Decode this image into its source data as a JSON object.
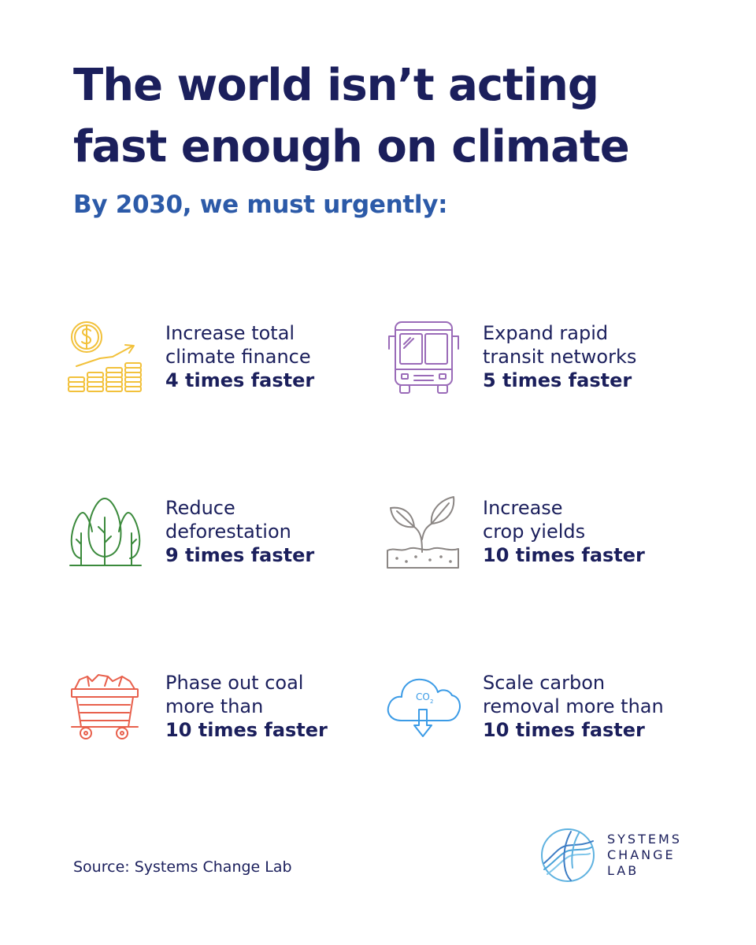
{
  "title": {
    "line1": "The world isn’t acting",
    "line2": "fast enough on climate"
  },
  "subtitle": "By 2030, we must urgently:",
  "colors": {
    "navy": "#1b1f5c",
    "subtitle_blue": "#2c5aa8",
    "finance_yellow": "#f2c13b",
    "transit_purple": "#9a6bb8",
    "forest_green": "#3b8a3c",
    "crop_gray": "#8b8684",
    "coal_red": "#e8604c",
    "carbon_blue": "#3b9be6"
  },
  "items": [
    {
      "icon": "coin-growth-icon",
      "line1": "Increase total",
      "line2": "climate finance",
      "emphasis": "4 times faster"
    },
    {
      "icon": "bus-icon",
      "line1": "Expand rapid",
      "line2": "transit networks",
      "emphasis": "5 times faster"
    },
    {
      "icon": "trees-icon",
      "line1": "Reduce",
      "line2": "deforestation",
      "emphasis": "9 times faster"
    },
    {
      "icon": "sprout-icon",
      "line1": "Increase",
      "line2": "crop yields",
      "emphasis": "10 times faster"
    },
    {
      "icon": "coal-cart-icon",
      "line1": "Phase out coal",
      "line2": "more than",
      "emphasis": "10 times faster"
    },
    {
      "icon": "co2-cloud-icon",
      "line1": "Scale carbon",
      "line2": "removal more than",
      "emphasis": "10 times faster"
    }
  ],
  "co2_label": "CO",
  "co2_subscript": "2",
  "source": "Source: Systems Change Lab",
  "logo": {
    "line1": "SYSTEMS",
    "line2": "CHANGE",
    "line3": "LAB"
  }
}
